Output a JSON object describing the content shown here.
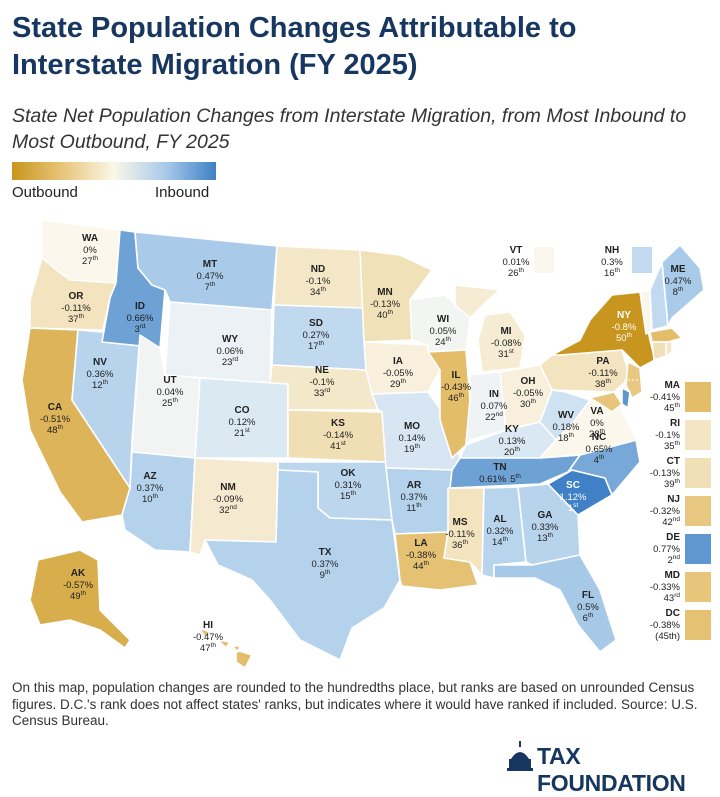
{
  "title": "State Population Changes Attributable to Interstate Migration (FY 2025)",
  "subtitle": "State Net Population Changes from Interstate Migration, from Most Inbound to Most Outbound, FY 2025",
  "legend": {
    "left_label": "Outbound",
    "right_label": "Inbound",
    "colors": {
      "outbound": "#c8961e",
      "neutral": "#fbf6e8",
      "inbound": "#3f80c6"
    }
  },
  "states": [
    {
      "abbr": "WA",
      "value": "0%",
      "rank": "27",
      "sfx": "th"
    },
    {
      "abbr": "OR",
      "value": "-0.11%",
      "rank": "37",
      "sfx": "th"
    },
    {
      "abbr": "CA",
      "value": "-0.51%",
      "rank": "48",
      "sfx": "th"
    },
    {
      "abbr": "NV",
      "value": "0.36%",
      "rank": "12",
      "sfx": "th"
    },
    {
      "abbr": "ID",
      "value": "0.66%",
      "rank": "3",
      "sfx": "rd"
    },
    {
      "abbr": "MT",
      "value": "0.47%",
      "rank": "7",
      "sfx": "th"
    },
    {
      "abbr": "WY",
      "value": "0.06%",
      "rank": "23",
      "sfx": "rd"
    },
    {
      "abbr": "UT",
      "value": "0.04%",
      "rank": "25",
      "sfx": "th"
    },
    {
      "abbr": "AZ",
      "value": "0.37%",
      "rank": "10",
      "sfx": "th"
    },
    {
      "abbr": "CO",
      "value": "0.12%",
      "rank": "21",
      "sfx": "st"
    },
    {
      "abbr": "NM",
      "value": "-0.09%",
      "rank": "32",
      "sfx": "nd"
    },
    {
      "abbr": "ND",
      "value": "-0.1%",
      "rank": "34",
      "sfx": "th"
    },
    {
      "abbr": "SD",
      "value": "0.27%",
      "rank": "17",
      "sfx": "th"
    },
    {
      "abbr": "NE",
      "value": "-0.1%",
      "rank": "33",
      "sfx": "rd"
    },
    {
      "abbr": "KS",
      "value": "-0.14%",
      "rank": "41",
      "sfx": "st"
    },
    {
      "abbr": "OK",
      "value": "0.31%",
      "rank": "15",
      "sfx": "th"
    },
    {
      "abbr": "TX",
      "value": "0.37%",
      "rank": "9",
      "sfx": "th"
    },
    {
      "abbr": "MN",
      "value": "-0.13%",
      "rank": "40",
      "sfx": "th"
    },
    {
      "abbr": "IA",
      "value": "-0.05%",
      "rank": "29",
      "sfx": "th"
    },
    {
      "abbr": "MO",
      "value": "0.14%",
      "rank": "19",
      "sfx": "th"
    },
    {
      "abbr": "AR",
      "value": "0.37%",
      "rank": "11",
      "sfx": "th"
    },
    {
      "abbr": "LA",
      "value": "-0.38%",
      "rank": "44",
      "sfx": "th"
    },
    {
      "abbr": "WI",
      "value": "0.05%",
      "rank": "24",
      "sfx": "th"
    },
    {
      "abbr": "IL",
      "value": "-0.43%",
      "rank": "46",
      "sfx": "th"
    },
    {
      "abbr": "MI",
      "value": "-0.08%",
      "rank": "31",
      "sfx": "st"
    },
    {
      "abbr": "IN",
      "value": "0.07%",
      "rank": "22",
      "sfx": "nd"
    },
    {
      "abbr": "OH",
      "value": "-0.05%",
      "rank": "30",
      "sfx": "th"
    },
    {
      "abbr": "KY",
      "value": "0.13%",
      "rank": "20",
      "sfx": "th"
    },
    {
      "abbr": "TN",
      "value": "0.61%",
      "rank": "5",
      "sfx": "th"
    },
    {
      "abbr": "MS",
      "value": "-0.11%",
      "rank": "36",
      "sfx": "th"
    },
    {
      "abbr": "AL",
      "value": "0.32%",
      "rank": "14",
      "sfx": "th"
    },
    {
      "abbr": "GA",
      "value": "0.33%",
      "rank": "13",
      "sfx": "th"
    },
    {
      "abbr": "FL",
      "value": "0.5%",
      "rank": "6",
      "sfx": "th"
    },
    {
      "abbr": "SC",
      "value": "1.12%",
      "rank": "1",
      "sfx": "st"
    },
    {
      "abbr": "NC",
      "value": "0.65%",
      "rank": "4",
      "sfx": "th"
    },
    {
      "abbr": "VA",
      "value": "0%",
      "rank": "28",
      "sfx": "th"
    },
    {
      "abbr": "WV",
      "value": "0.18%",
      "rank": "18",
      "sfx": "th"
    },
    {
      "abbr": "PA",
      "value": "-0.11%",
      "rank": "38",
      "sfx": "th"
    },
    {
      "abbr": "NY",
      "value": "-0.8%",
      "rank": "50",
      "sfx": "th"
    },
    {
      "abbr": "VT",
      "value": "0.01%",
      "rank": "26",
      "sfx": "th"
    },
    {
      "abbr": "NH",
      "value": "0.3%",
      "rank": "16",
      "sfx": "th"
    },
    {
      "abbr": "ME",
      "value": "0.47%",
      "rank": "8",
      "sfx": "th"
    },
    {
      "abbr": "AK",
      "value": "-0.57%",
      "rank": "49",
      "sfx": "th"
    },
    {
      "abbr": "HI",
      "value": "-0.47%",
      "rank": "47",
      "sfx": "th"
    }
  ],
  "small_states": [
    {
      "abbr": "MA",
      "value": "-0.41%",
      "rank": "45",
      "sfx": "th",
      "color": "#e3bd6a"
    },
    {
      "abbr": "RI",
      "value": "-0.1%",
      "rank": "35",
      "sfx": "th",
      "color": "#f4e6c4"
    },
    {
      "abbr": "CT",
      "value": "-0.13%",
      "rank": "39",
      "sfx": "th",
      "color": "#f1e0b7"
    },
    {
      "abbr": "NJ",
      "value": "-0.32%",
      "rank": "42",
      "sfx": "nd",
      "color": "#e8c880"
    },
    {
      "abbr": "DE",
      "value": "0.77%",
      "rank": "2",
      "sfx": "nd",
      "color": "#5f97d0"
    },
    {
      "abbr": "MD",
      "value": "-0.33%",
      "rank": "43",
      "sfx": "rd",
      "color": "#e7c67c"
    },
    {
      "abbr": "DC",
      "value": "-0.38%",
      "rank": "(45th)",
      "sfx": "",
      "color": "#e5c173"
    }
  ],
  "footnote": "On this map, population changes are rounded to the hundredths place, but ranks are based on unrounded Census figures. D.C.'s rank does not affect states' ranks, but indicates where it would have ranked if included. Source: U.S. Census Bureau.",
  "logo_text": "TAX FOUNDATION"
}
